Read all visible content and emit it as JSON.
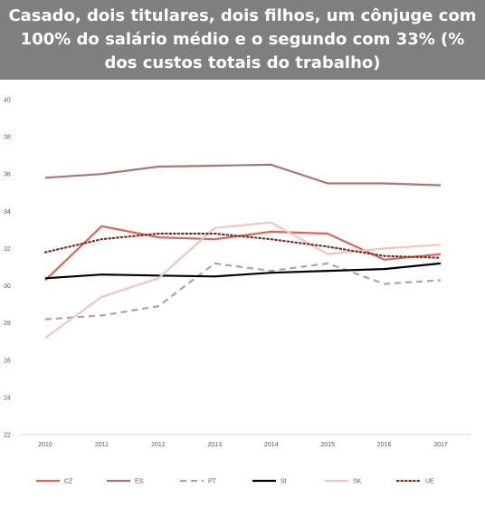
{
  "title": "Casado, dois titulares, dois filhos, um cônjuge com 100% do salário médio e o segundo com 33% (% dos custos totais do trabalho)",
  "chart_data": {
    "type": "line",
    "x": [
      "2010",
      "2011",
      "2012",
      "2013",
      "2014",
      "2015",
      "2016",
      "2017"
    ],
    "ylim": [
      22,
      40
    ],
    "yticks": [
      22,
      24,
      26,
      28,
      30,
      32,
      34,
      36,
      38,
      40
    ],
    "grid": false,
    "legend_position": "bottom",
    "series": [
      {
        "name": "CZ",
        "color": "#e06555",
        "style": "solid",
        "values": [
          30.3,
          33.2,
          32.6,
          32.5,
          32.9,
          32.8,
          31.4,
          31.7
        ]
      },
      {
        "name": "ES",
        "color": "#a9776e",
        "style": "solid",
        "values": [
          35.8,
          36.0,
          36.4,
          36.45,
          36.5,
          35.5,
          35.5,
          35.4
        ]
      },
      {
        "name": "PT",
        "color": "#a6a6a6",
        "style": "dashed",
        "values": [
          28.2,
          28.4,
          28.9,
          31.2,
          30.8,
          31.2,
          30.1,
          30.3
        ]
      },
      {
        "name": "SI",
        "color": "#000000",
        "style": "solid",
        "values": [
          30.4,
          30.6,
          30.55,
          30.5,
          30.7,
          30.8,
          30.9,
          31.2
        ]
      },
      {
        "name": "SK",
        "color": "#f4c5bd",
        "style": "solid",
        "values": [
          27.2,
          29.4,
          30.4,
          33.1,
          33.4,
          31.7,
          32.0,
          32.2
        ]
      },
      {
        "name": "UE",
        "color": "#7b2c22",
        "style": "dotted",
        "values": [
          31.8,
          32.5,
          32.8,
          32.8,
          32.5,
          32.1,
          31.6,
          31.5
        ]
      }
    ]
  }
}
